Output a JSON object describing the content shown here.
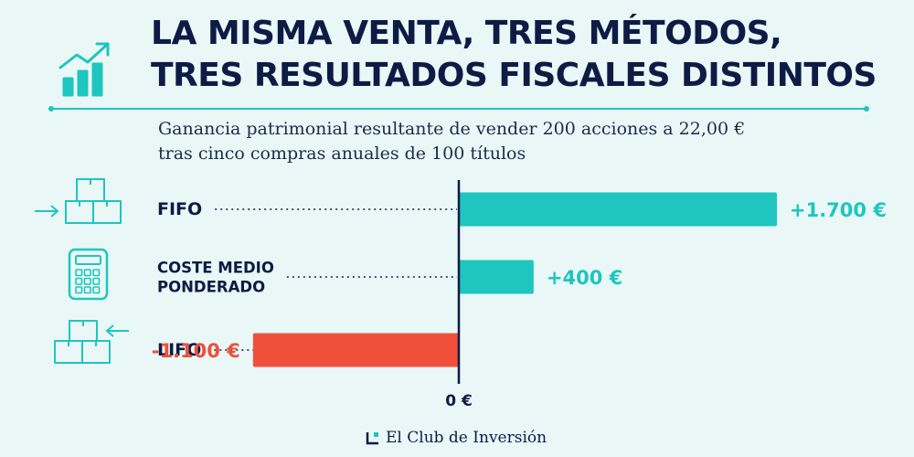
{
  "header": {
    "title_line1": "LA MISMA VENTA, TRES MÉTODOS,",
    "title_line2": "TRES RESULTADOS FISCALES DISTINTOS",
    "subtitle_line1": "Ganancia patrimonial resultante de vender 200 acciones a 22,00 €",
    "subtitle_line2": "tras cinco compras anuales de 100 títulos",
    "icon": "growth-chart-icon"
  },
  "colors": {
    "navy": "#0d1b45",
    "teal": "#1fc5bf",
    "red": "#f0503a",
    "background": "#e9f8f7"
  },
  "chart_data": {
    "type": "bar",
    "orientation": "horizontal",
    "categories": [
      {
        "label_lines": [
          "FIFO"
        ],
        "icon": "boxes-arrow-in-icon"
      },
      {
        "label_lines": [
          "COSTE MEDIO",
          "PONDERADO"
        ],
        "icon": "calculator-icon"
      },
      {
        "label_lines": [
          "LIFO"
        ],
        "icon": "boxes-arrow-out-icon"
      }
    ],
    "values": [
      1700,
      400,
      -1100
    ],
    "value_labels": [
      "+1.700 €",
      "+400 €",
      "-1.100 €"
    ],
    "zero_label": "0 €",
    "xlim": [
      -1500,
      2100
    ],
    "grid": false,
    "legend": "none"
  },
  "footer": {
    "brand": "El Club de Inversión"
  }
}
